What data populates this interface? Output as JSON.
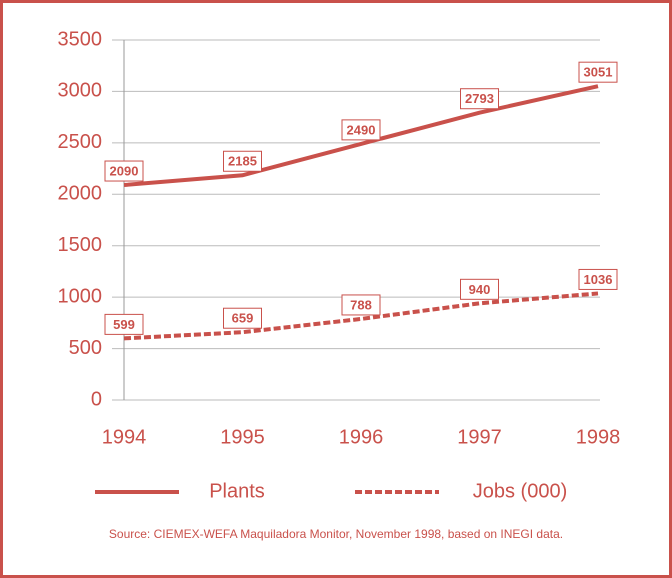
{
  "chart_data": {
    "type": "line",
    "categories": [
      "1994",
      "1995",
      "1996",
      "1997",
      "1998"
    ],
    "series": [
      {
        "name": "Plants",
        "color": "#c9514b",
        "linestyle": "solid",
        "values": [
          2090,
          2185,
          2490,
          2793,
          3051
        ]
      },
      {
        "name": "Jobs (000)",
        "color": "#c9514b",
        "linestyle": "dashed",
        "values": [
          599,
          659,
          788,
          940,
          1036
        ]
      }
    ],
    "ylim": [
      0,
      3500
    ],
    "yticks": [
      0,
      500,
      1000,
      1500,
      2000,
      2500,
      3000,
      3500
    ],
    "grid": true,
    "source": "Source: CIEMEX-WEFA Maquiladora Monitor, November 1998, based on INEGI data."
  }
}
